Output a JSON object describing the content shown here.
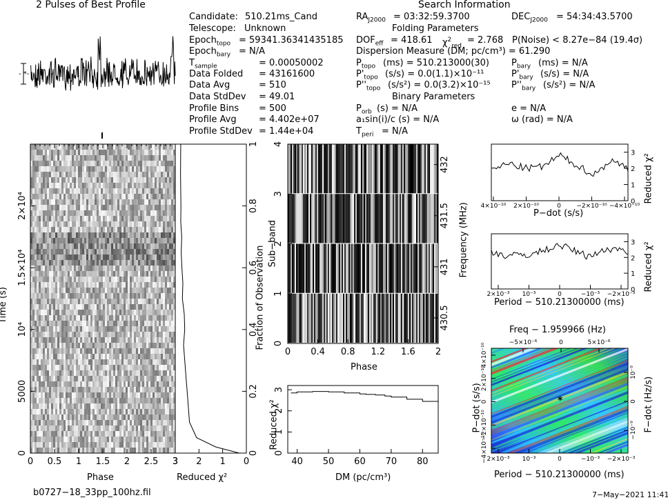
{
  "header": {
    "profile_title": "2 Pulses of Best Profile",
    "search_title": "Search Information",
    "filename": "b0727−18_33pp_100hz.fil",
    "date": "7−May−2021 11:41"
  },
  "info": {
    "candidate_label": "Candidate:",
    "candidate": "510.21ms_Cand",
    "telescope_label": "Telescope:",
    "telescope": "Unknown",
    "epoch_topo": "= 59341.36341435185",
    "epoch_bary": "= N/A",
    "t_sample": "= 0.00050002",
    "data_folded_label": "Data Folded",
    "data_folded": "= 43161600",
    "data_avg_label": "Data Avg",
    "data_avg": "= 510",
    "data_std_label": "Data StdDev",
    "data_std": "= 49.01",
    "profile_bins_label": "Profile Bins",
    "profile_bins": "= 500",
    "profile_avg_label": "Profile Avg",
    "profile_avg": "= 4.402e+07",
    "profile_std_label": "Profile StdDev",
    "profile_std": "= 1.44e+04",
    "ra": "= 03:32:59.3700",
    "dec": "= 54:34:43.5700",
    "folding_title": "Folding Parameters",
    "dof": "= 418.61",
    "chi_red": "= 2.768",
    "p_noise": "P(Noise) < 8.27e−84   (19.4σ)",
    "dm": "Dispersion Measure (DM; pc/cm³) = 61.290",
    "p_topo": "(ms)  =  510.213000(30)",
    "p_bary": "(ms) = N/A",
    "pd_topo": "(s/s) = 0.0(1.1)×10⁻¹¹",
    "pd_bary": "(s/s) = N/A",
    "pdd_topo": "(s/s²) = 0.0(3.2)×10⁻¹⁵",
    "pdd_bary": "(s/s²) = N/A",
    "binary_title": "Binary Parameters",
    "p_orb": "(s) = N/A",
    "ecc": "e = N/A",
    "a1": "a₁sin(i)/c (s) = N/A",
    "omega": "ω (rad) = N/A",
    "t_peri": "= N/A"
  },
  "axes": {
    "phase": "Phase",
    "time": "Time (s)",
    "reduced_chi2": "Reduced χ²",
    "frac_obs": "Fraction of Observation",
    "subband": "Sub−band",
    "frequency": "Frequency (MHz)",
    "dm": "DM (pc/cm³)",
    "pdot": "P−dot (s/s)",
    "period": "Period − 510.21300000 (ms)",
    "freq_top": "Freq − 1.959966 (Hz)",
    "fdot": "F−dot (Hz/s)"
  },
  "ticks": {
    "phase_time": [
      "0",
      "0.5",
      "1",
      "1.5",
      "2",
      "2.5",
      "3"
    ],
    "time": [
      "0",
      "5000",
      "10⁴",
      "1.5×10⁴",
      "2×10⁴"
    ],
    "chi_bottom": [
      "3",
      "2",
      "1",
      "0"
    ],
    "frac": [
      "0",
      "0.2",
      "0.4",
      "0.6",
      "0.8",
      "1"
    ],
    "phase_sub": [
      "0",
      "0.4",
      "0.8",
      "1.2",
      "1.6",
      "2"
    ],
    "subband": [
      "0",
      "1",
      "2",
      "3",
      "4"
    ],
    "freq": [
      "430.5",
      "431",
      "431.5",
      "432"
    ],
    "chi_small": [
      "0",
      "1",
      "2",
      "3"
    ],
    "dm": [
      "40",
      "50",
      "60",
      "70",
      "80"
    ],
    "pdot_x": [
      "4×10⁻¹⁰",
      "2×10⁻¹⁰",
      "0",
      "−2×10⁻¹⁰",
      "−4×10⁻¹⁰"
    ],
    "period_x": [
      "2×10⁻³",
      "10⁻³",
      "0",
      "−10⁻³",
      "−2×10⁻³"
    ],
    "freq_x": [
      "−5×10⁻⁶",
      "0",
      "5×10⁻⁶"
    ],
    "pdot_y": [
      "4×10⁻¹⁰",
      "2×10⁻¹⁰",
      "0",
      "−2×10⁻¹⁰",
      "−4×10⁻¹⁰"
    ],
    "fdot_y": [
      "10⁻⁹",
      "0",
      "−10⁻⁹"
    ]
  },
  "chart_data": [
    {
      "type": "line",
      "title": "2 Pulses of Best Profile",
      "xlabel": "Phase",
      "ylabel": "",
      "xlim": [
        0,
        2
      ],
      "series": [
        {
          "values": [
            0.1,
            0.6,
            -0.3,
            0.9,
            0.2,
            -0.5,
            0.4,
            1.1,
            -0.2,
            0.3,
            -0.7,
            0.8,
            0.0,
            -0.4,
            1.6,
            0.2,
            -0.9,
            0.5,
            0.1,
            -0.3,
            0.7,
            -1.2,
            0.4,
            0.9,
            -0.1,
            0.3,
            -0.6,
            1.0,
            0.2,
            -0.4
          ]
        }
      ]
    },
    {
      "type": "heatmap",
      "xlabel": "Phase",
      "ylabel": "Time (s)",
      "xlim": [
        0,
        3
      ],
      "ylim": [
        0,
        25000
      ]
    },
    {
      "type": "line",
      "xlabel": "Reduced χ²",
      "ylabel": "Fraction of Observation",
      "xlim": [
        3,
        0
      ],
      "ylim": [
        0,
        1
      ],
      "x": [
        0.3,
        1.3,
        2.1,
        2.4,
        2.45,
        2.5,
        2.55,
        2.6,
        2.65,
        2.6,
        2.62,
        2.7,
        2.68,
        2.72,
        2.75,
        2.73,
        2.77,
        2.76,
        2.78,
        2.77
      ],
      "y": [
        0.0,
        0.02,
        0.05,
        0.1,
        0.15,
        0.2,
        0.25,
        0.3,
        0.35,
        0.4,
        0.45,
        0.5,
        0.55,
        0.6,
        0.65,
        0.7,
        0.75,
        0.8,
        0.9,
        1.0
      ]
    },
    {
      "type": "heatmap",
      "xlabel": "Phase",
      "ylabel": "Sub−band",
      "xlim": [
        0,
        2
      ],
      "ylim": [
        0,
        4
      ]
    },
    {
      "type": "line",
      "xlabel": "DM (pc/cm³)",
      "ylabel": "Reduced χ²",
      "xlim": [
        37,
        85
      ],
      "ylim": [
        0,
        3
      ],
      "x": [
        38,
        40,
        45,
        50,
        55,
        60,
        62,
        65,
        68,
        70,
        75,
        80,
        85
      ],
      "y": [
        2.85,
        2.9,
        2.92,
        2.9,
        2.85,
        2.8,
        2.78,
        2.75,
        2.7,
        2.65,
        2.55,
        2.45,
        2.4
      ]
    },
    {
      "type": "line",
      "xlabel": "P−dot (s/s)",
      "ylabel": "Reduced χ²",
      "ylim": [
        0,
        3.5
      ],
      "x": [
        -4,
        -3,
        -2,
        -1,
        0,
        1,
        2,
        3,
        4
      ],
      "y": [
        1.9,
        2.3,
        2.0,
        2.1,
        2.8,
        2.2,
        1.6,
        2.5,
        2.0
      ]
    },
    {
      "type": "line",
      "xlabel": "Period − 510.21300000 (ms)",
      "ylabel": "Reduced χ²",
      "ylim": [
        0,
        3.5
      ],
      "x": [
        -2.5,
        -2,
        -1,
        0,
        1,
        2,
        2.5
      ],
      "y": [
        2.4,
        2.1,
        2.2,
        2.8,
        2.1,
        2.6,
        2.4
      ]
    },
    {
      "type": "heatmap",
      "xlabel": "Period − 510.21300000 (ms)",
      "ylabel": "P−dot (s/s)",
      "title": "Freq − 1.959966 (Hz)"
    }
  ]
}
